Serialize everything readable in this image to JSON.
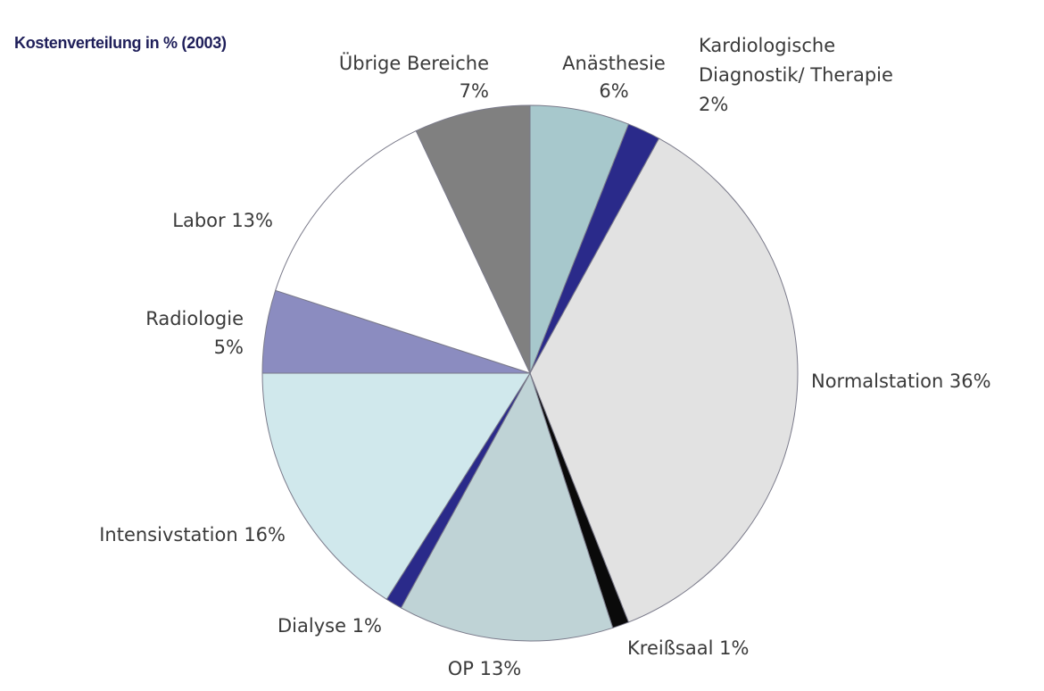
{
  "chart_data": {
    "type": "pie",
    "title": "Kostenverteilung in % (2003)",
    "start": "12 o'clock",
    "direction": "clockwise",
    "slices": [
      {
        "key": "anaesthesie",
        "label_lines": [
          "Anästhesie",
          "6%"
        ],
        "value": 6,
        "color": "#a7c8cc"
      },
      {
        "key": "kardiologie",
        "label_lines": [
          "Kardiologische",
          "Diagnostik/ Therapie",
          "2%"
        ],
        "value": 2,
        "color": "#2a2a8a"
      },
      {
        "key": "normalstation",
        "label_lines": [
          "Normalstation 36%"
        ],
        "value": 36,
        "color": "#e2e2e2"
      },
      {
        "key": "kreisssaal",
        "label_lines": [
          "Kreißsaal 1%"
        ],
        "value": 1,
        "color": "#0a0a0a"
      },
      {
        "key": "op",
        "label_lines": [
          "OP 13%"
        ],
        "value": 13,
        "color": "#bfd3d6"
      },
      {
        "key": "dialyse",
        "label_lines": [
          "Dialyse 1%"
        ],
        "value": 1,
        "color": "#2a2a8a"
      },
      {
        "key": "intensivstation",
        "label_lines": [
          "Intensivstation 16%"
        ],
        "value": 16,
        "color": "#d0e8ec"
      },
      {
        "key": "radiologie",
        "label_lines": [
          "Radiologie",
          "5%"
        ],
        "value": 5,
        "color": "#8b8cc0"
      },
      {
        "key": "labor",
        "label_lines": [
          "Labor 13%"
        ],
        "value": 13,
        "color": "#ffffff"
      },
      {
        "key": "uebrige",
        "label_lines": [
          "Übrige Bereiche",
          "7%"
        ],
        "value": 7,
        "color": "#808080"
      }
    ]
  }
}
